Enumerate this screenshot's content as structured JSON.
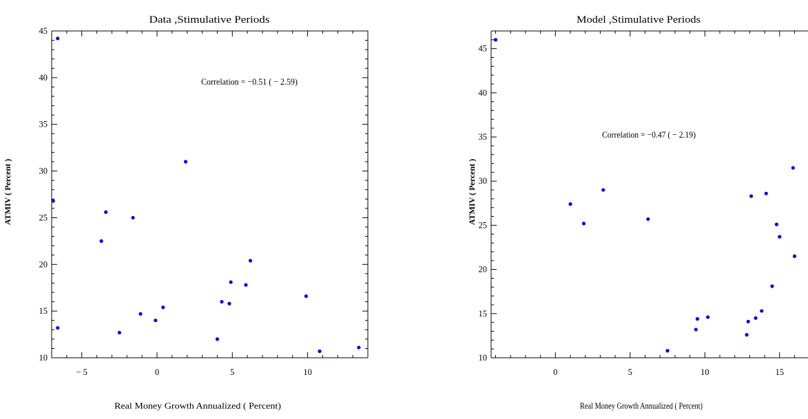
{
  "chart_data": [
    {
      "type": "scatter",
      "title": "Data ,Stimulative Periods",
      "xlabel": "Real Money Growth Annualized ( Percent)",
      "ylabel": "ATMIV ( Percent )",
      "annotation": "Correlation = −0.51 ( − 2.59)",
      "xlim": [
        -7,
        14
      ],
      "ylim": [
        10,
        45
      ],
      "xticks": [
        -5,
        0,
        5,
        10
      ],
      "xtick_labels": [
        "− 5",
        "0",
        "5",
        "10"
      ],
      "yticks": [
        10,
        15,
        20,
        25,
        30,
        35,
        40,
        45
      ],
      "ytick_labels": [
        "10",
        "15",
        "20",
        "25",
        "30",
        "35",
        "40",
        "45"
      ],
      "marker_color": "#0000ee",
      "grid": false,
      "points": [
        {
          "x": -6.6,
          "y": 44.2
        },
        {
          "x": -6.9,
          "y": 26.8
        },
        {
          "x": -6.6,
          "y": 13.2
        },
        {
          "x": -3.4,
          "y": 25.6
        },
        {
          "x": -3.7,
          "y": 22.5
        },
        {
          "x": -1.6,
          "y": 25.0
        },
        {
          "x": -2.5,
          "y": 12.7
        },
        {
          "x": -1.1,
          "y": 14.7
        },
        {
          "x": -0.1,
          "y": 14.0
        },
        {
          "x": 0.4,
          "y": 15.4
        },
        {
          "x": 1.9,
          "y": 31.0
        },
        {
          "x": 4.0,
          "y": 12.0
        },
        {
          "x": 4.3,
          "y": 16.0
        },
        {
          "x": 4.8,
          "y": 15.8
        },
        {
          "x": 4.9,
          "y": 18.1
        },
        {
          "x": 5.9,
          "y": 17.8
        },
        {
          "x": 6.2,
          "y": 20.4
        },
        {
          "x": 9.9,
          "y": 16.6
        },
        {
          "x": 10.8,
          "y": 10.7
        },
        {
          "x": 13.4,
          "y": 11.1
        }
      ]
    },
    {
      "type": "scatter",
      "title": "Model ,Stimulative Periods",
      "xlabel": "Real Money Growth Annualized ( Percent)",
      "ylabel": "ATMIV ( Percent )",
      "annotation": "Correlation = −0.47 ( − 2.19)",
      "xlim": [
        -4.3,
        16.9
      ],
      "ylim": [
        10,
        47
      ],
      "xticks": [
        0,
        5,
        10,
        15
      ],
      "xtick_labels": [
        "0",
        "5",
        "10",
        "15"
      ],
      "yticks": [
        10,
        15,
        20,
        25,
        30,
        35,
        40,
        45
      ],
      "ytick_labels": [
        "10",
        "15",
        "20",
        "25",
        "30",
        "35",
        "40",
        "45"
      ],
      "marker_color": "#0000ee",
      "grid": false,
      "points": [
        {
          "x": -4.0,
          "y": 46.0
        },
        {
          "x": 1.0,
          "y": 27.4
        },
        {
          "x": 1.9,
          "y": 25.2
        },
        {
          "x": 3.2,
          "y": 29.0
        },
        {
          "x": 6.2,
          "y": 25.7
        },
        {
          "x": 7.5,
          "y": 10.8
        },
        {
          "x": 9.4,
          "y": 13.2
        },
        {
          "x": 9.5,
          "y": 14.4
        },
        {
          "x": 10.2,
          "y": 14.6
        },
        {
          "x": 12.8,
          "y": 12.6
        },
        {
          "x": 12.9,
          "y": 14.1
        },
        {
          "x": 13.1,
          "y": 28.3
        },
        {
          "x": 13.4,
          "y": 14.5
        },
        {
          "x": 13.8,
          "y": 15.3
        },
        {
          "x": 14.1,
          "y": 28.6
        },
        {
          "x": 14.5,
          "y": 18.1
        },
        {
          "x": 14.8,
          "y": 25.1
        },
        {
          "x": 15.0,
          "y": 23.7
        },
        {
          "x": 15.9,
          "y": 31.5
        },
        {
          "x": 16.0,
          "y": 21.5
        }
      ]
    }
  ]
}
